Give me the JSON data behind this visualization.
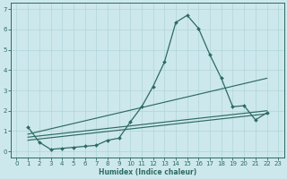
{
  "xlabel": "Humidex (Indice chaleur)",
  "ylabel": "",
  "background_color": "#cde8ec",
  "grid_color": "#b0d4d8",
  "line_color": "#2d6b62",
  "xlim": [
    -0.5,
    23.5
  ],
  "ylim": [
    -0.3,
    7.3
  ],
  "xticks": [
    0,
    1,
    2,
    3,
    4,
    5,
    6,
    7,
    8,
    9,
    10,
    11,
    12,
    13,
    14,
    15,
    16,
    17,
    18,
    19,
    20,
    21,
    22,
    23
  ],
  "yticks": [
    0,
    1,
    2,
    3,
    4,
    5,
    6,
    7
  ],
  "main_line": {
    "x": [
      1,
      2,
      3,
      4,
      5,
      6,
      7,
      8,
      9,
      10,
      11,
      12,
      13,
      14,
      15,
      16,
      17,
      18,
      19,
      20,
      21,
      22
    ],
    "y": [
      1.2,
      0.45,
      0.1,
      0.15,
      0.2,
      0.25,
      0.3,
      0.55,
      0.65,
      1.45,
      2.2,
      3.2,
      4.4,
      6.35,
      6.7,
      6.05,
      4.75,
      3.6,
      2.2,
      2.25,
      1.55,
      1.9
    ]
  },
  "trend_lines": [
    {
      "x": [
        1,
        22
      ],
      "y": [
        0.85,
        3.6
      ]
    },
    {
      "x": [
        1,
        22
      ],
      "y": [
        0.7,
        2.0
      ]
    },
    {
      "x": [
        1,
        22
      ],
      "y": [
        0.55,
        1.85
      ]
    }
  ]
}
